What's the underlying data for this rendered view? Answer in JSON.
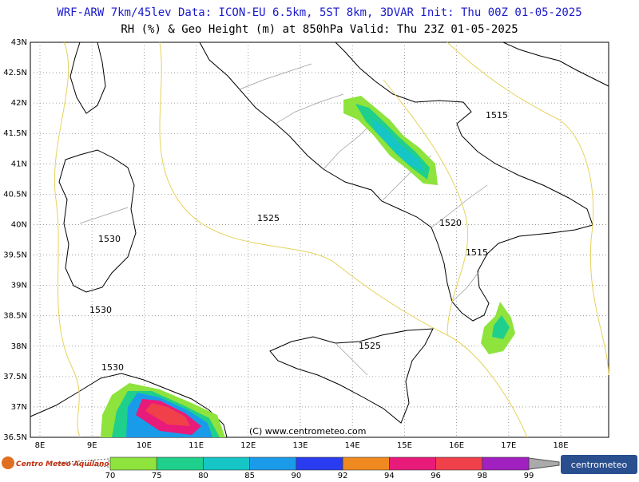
{
  "header": {
    "title": "WRF-ARW 7km/45lev  Data: ICON-EU 6.5km, 5ST 8km, 3DVAR  Init: Thu 00Z 01-05-2025",
    "subtitle": "RH (%) & Geo Height (m) at 850hPa  Valid: Thu 23Z 01-05-2025"
  },
  "map": {
    "lat_labels": [
      "43N",
      "42.5N",
      "42N",
      "41.5N",
      "41N",
      "40.5N",
      "40N",
      "39.5N",
      "39N",
      "38.5N",
      "38N",
      "37.5N",
      "37N",
      "36.5N"
    ],
    "lon_labels": [
      "8E",
      "9E",
      "10E",
      "11E",
      "12E",
      "13E",
      "14E",
      "15E",
      "16E",
      "17E",
      "18E"
    ],
    "contour_labels": [
      "1515",
      "1525",
      "1520",
      "1530",
      "1515",
      "1530",
      "1525",
      "1530"
    ],
    "copyright": "(C) www.centrometeo.com"
  },
  "colorbar": {
    "labels": [
      "70",
      "75",
      "80",
      "85",
      "90",
      "92",
      "94",
      "96",
      "98",
      "99"
    ],
    "colors": [
      "#8ee33c",
      "#1fcf8c",
      "#16c5c5",
      "#1a9bea",
      "#2a3cf0",
      "#f08a20",
      "#e81a7a",
      "#f0404a",
      "#a020c0"
    ]
  },
  "logos": {
    "left": "Centro Meteo Aquilano",
    "right": "centrometeo"
  }
}
